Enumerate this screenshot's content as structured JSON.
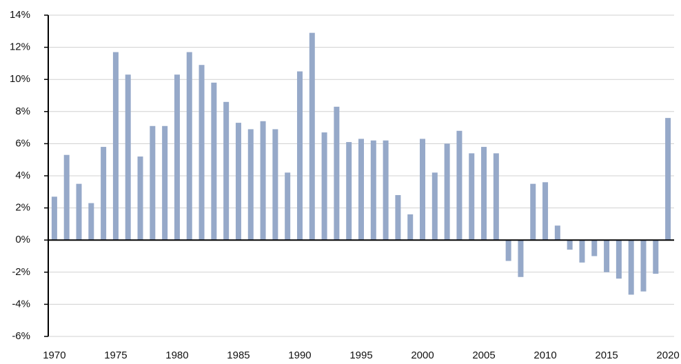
{
  "chart_data": {
    "type": "bar",
    "categories": [
      "1970",
      null,
      null,
      null,
      null,
      "1975",
      null,
      null,
      null,
      null,
      "1980",
      null,
      null,
      null,
      null,
      "1985",
      null,
      null,
      null,
      null,
      "1990",
      null,
      null,
      null,
      null,
      "1995",
      null,
      null,
      null,
      null,
      "2000",
      null,
      null,
      null,
      null,
      "2005",
      null,
      null,
      null,
      null,
      "2010",
      null,
      null,
      null,
      null,
      "2015",
      null,
      null,
      null,
      null,
      "2020"
    ],
    "values": [
      2.7,
      5.3,
      3.5,
      2.3,
      5.8,
      11.7,
      10.3,
      5.2,
      7.1,
      7.1,
      10.3,
      11.7,
      10.9,
      9.8,
      8.6,
      7.3,
      6.9,
      7.4,
      6.9,
      4.2,
      10.5,
      12.9,
      6.7,
      8.3,
      6.1,
      6.3,
      6.2,
      6.2,
      2.8,
      1.6,
      6.3,
      4.2,
      6.0,
      6.8,
      5.4,
      5.8,
      5.4,
      -1.3,
      -2.3,
      3.5,
      3.6,
      0.9,
      -0.6,
      -1.4,
      -1.0,
      -2.0,
      -2.4,
      -3.4,
      -3.2,
      -2.1,
      7.6
    ],
    "color": "#96a9c9",
    "ylim": [
      -6,
      14
    ],
    "yticks": [
      {
        "value": -6,
        "label": "-6%"
      },
      {
        "value": -4,
        "label": "-4%"
      },
      {
        "value": -2,
        "label": "-2%"
      },
      {
        "value": 0,
        "label": "0%"
      },
      {
        "value": 2,
        "label": "2%"
      },
      {
        "value": 4,
        "label": "4%"
      },
      {
        "value": 6,
        "label": "6%"
      },
      {
        "value": 8,
        "label": "8%"
      },
      {
        "value": 10,
        "label": "10%"
      },
      {
        "value": 12,
        "label": "12%"
      },
      {
        "value": 14,
        "label": "14%"
      }
    ],
    "grid": true
  }
}
